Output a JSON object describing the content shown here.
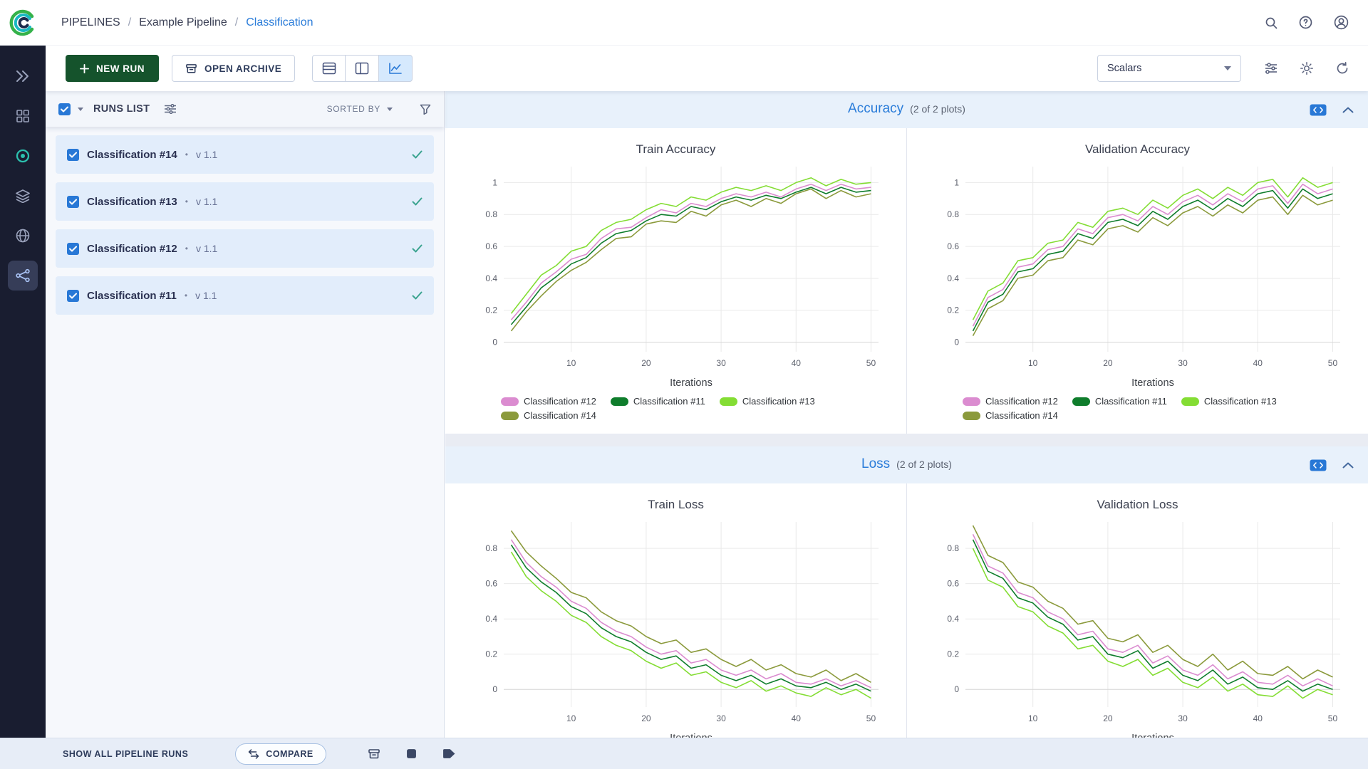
{
  "colors": {
    "accent": "#2878d6",
    "new_run_button": "#15532c",
    "run_selected_row": "#e2edfb",
    "run_check": "#3aa38f",
    "section_header_bg": "#e8f1fb",
    "rail_bg": "#191d30"
  },
  "header": {
    "breadcrumb": [
      "PIPELINES",
      "Example Pipeline",
      "Classification"
    ],
    "separator": "/"
  },
  "toolbar": {
    "new_run": "NEW RUN",
    "open_archive": "OPEN ARCHIVE",
    "metric_view": "Scalars"
  },
  "runs_panel": {
    "title": "RUNS LIST",
    "sorted_by": "SORTED BY",
    "bullet": "•",
    "runs": [
      {
        "name": "Classification #14",
        "version": "v 1.1"
      },
      {
        "name": "Classification #13",
        "version": "v 1.1"
      },
      {
        "name": "Classification #12",
        "version": "v 1.1"
      },
      {
        "name": "Classification #11",
        "version": "v 1.1"
      }
    ]
  },
  "sections": [
    {
      "title": "Accuracy",
      "subtitle": "(2 of 2 plots)"
    },
    {
      "title": "Loss",
      "subtitle": "(2 of 2 plots)"
    }
  ],
  "footer": {
    "show_all": "SHOW ALL PIPELINE RUNS",
    "compare": "COMPARE"
  },
  "chart_data": [
    {
      "type": "line",
      "title": "Train Accuracy",
      "xlabel": "Iterations",
      "xlim": [
        1,
        51
      ],
      "ylim": [
        -0.06,
        1.1
      ],
      "xticks": [
        10,
        20,
        30,
        40,
        50
      ],
      "yticks": [
        0,
        0.2,
        0.4,
        0.6,
        0.8,
        1
      ],
      "x": [
        2,
        4,
        6,
        8,
        10,
        12,
        14,
        16,
        18,
        20,
        22,
        24,
        26,
        28,
        30,
        32,
        34,
        36,
        38,
        40,
        42,
        44,
        46,
        48,
        50
      ],
      "series": [
        {
          "name": "Classification #12",
          "color": "#db8cd0",
          "values": [
            0.14,
            0.25,
            0.37,
            0.44,
            0.52,
            0.55,
            0.65,
            0.71,
            0.72,
            0.78,
            0.83,
            0.81,
            0.87,
            0.85,
            0.9,
            0.93,
            0.91,
            0.94,
            0.91,
            0.96,
            0.99,
            0.95,
            0.99,
            0.96,
            0.97
          ]
        },
        {
          "name": "Classification #11",
          "color": "#0f7d2c",
          "values": [
            0.11,
            0.22,
            0.34,
            0.41,
            0.49,
            0.53,
            0.62,
            0.68,
            0.7,
            0.76,
            0.8,
            0.79,
            0.85,
            0.83,
            0.88,
            0.91,
            0.89,
            0.92,
            0.9,
            0.94,
            0.97,
            0.93,
            0.97,
            0.94,
            0.95
          ]
        },
        {
          "name": "Classification #13",
          "color": "#84dd34",
          "values": [
            0.18,
            0.3,
            0.42,
            0.48,
            0.57,
            0.6,
            0.7,
            0.75,
            0.77,
            0.83,
            0.87,
            0.85,
            0.91,
            0.89,
            0.94,
            0.97,
            0.95,
            0.98,
            0.95,
            1.0,
            1.03,
            0.98,
            1.02,
            0.99,
            1.0
          ]
        },
        {
          "name": "Classification #14",
          "color": "#8b9a3c",
          "values": [
            0.07,
            0.19,
            0.29,
            0.38,
            0.45,
            0.5,
            0.58,
            0.65,
            0.66,
            0.74,
            0.76,
            0.75,
            0.82,
            0.79,
            0.86,
            0.89,
            0.85,
            0.9,
            0.87,
            0.93,
            0.96,
            0.9,
            0.95,
            0.91,
            0.93
          ]
        }
      ]
    },
    {
      "type": "line",
      "title": "Validation Accuracy",
      "xlabel": "Iterations",
      "xlim": [
        1,
        51
      ],
      "ylim": [
        -0.06,
        1.1
      ],
      "xticks": [
        10,
        20,
        30,
        40,
        50
      ],
      "yticks": [
        0,
        0.2,
        0.4,
        0.6,
        0.8,
        1
      ],
      "x": [
        2,
        4,
        6,
        8,
        10,
        12,
        14,
        16,
        18,
        20,
        22,
        24,
        26,
        28,
        30,
        32,
        34,
        36,
        38,
        40,
        42,
        44,
        46,
        48,
        50
      ],
      "series": [
        {
          "name": "Classification #12",
          "color": "#db8cd0",
          "values": [
            0.1,
            0.28,
            0.33,
            0.47,
            0.49,
            0.58,
            0.6,
            0.71,
            0.68,
            0.78,
            0.8,
            0.76,
            0.85,
            0.8,
            0.88,
            0.92,
            0.86,
            0.93,
            0.88,
            0.96,
            0.98,
            0.87,
            0.99,
            0.93,
            0.96
          ]
        },
        {
          "name": "Classification #11",
          "color": "#0f7d2c",
          "values": [
            0.07,
            0.25,
            0.3,
            0.44,
            0.46,
            0.55,
            0.57,
            0.68,
            0.65,
            0.75,
            0.77,
            0.73,
            0.82,
            0.77,
            0.85,
            0.89,
            0.83,
            0.9,
            0.85,
            0.93,
            0.95,
            0.84,
            0.96,
            0.9,
            0.93
          ]
        },
        {
          "name": "Classification #13",
          "color": "#84dd34",
          "values": [
            0.14,
            0.32,
            0.37,
            0.51,
            0.53,
            0.62,
            0.64,
            0.75,
            0.72,
            0.82,
            0.84,
            0.8,
            0.89,
            0.84,
            0.92,
            0.96,
            0.9,
            0.97,
            0.92,
            1.0,
            1.02,
            0.91,
            1.03,
            0.97,
            1.0
          ]
        },
        {
          "name": "Classification #14",
          "color": "#8b9a3c",
          "values": [
            0.04,
            0.21,
            0.26,
            0.4,
            0.42,
            0.51,
            0.53,
            0.64,
            0.61,
            0.71,
            0.73,
            0.69,
            0.78,
            0.73,
            0.81,
            0.85,
            0.79,
            0.86,
            0.81,
            0.89,
            0.91,
            0.8,
            0.92,
            0.86,
            0.89
          ]
        }
      ]
    },
    {
      "type": "line",
      "title": "Train Loss",
      "xlabel": "Iterations",
      "xlim": [
        1,
        51
      ],
      "ylim": [
        -0.1,
        0.95
      ],
      "xticks": [
        10,
        20,
        30,
        40,
        50
      ],
      "yticks": [
        0,
        0.2,
        0.4,
        0.6,
        0.8
      ],
      "x": [
        2,
        4,
        6,
        8,
        10,
        12,
        14,
        16,
        18,
        20,
        22,
        24,
        26,
        28,
        30,
        32,
        34,
        36,
        38,
        40,
        42,
        44,
        46,
        48,
        50
      ],
      "series": [
        {
          "name": "Classification #12",
          "color": "#db8cd0",
          "values": [
            0.85,
            0.72,
            0.64,
            0.58,
            0.5,
            0.46,
            0.38,
            0.33,
            0.3,
            0.24,
            0.2,
            0.22,
            0.15,
            0.17,
            0.11,
            0.08,
            0.11,
            0.06,
            0.09,
            0.04,
            0.03,
            0.06,
            0.02,
            0.05,
            0.01
          ]
        },
        {
          "name": "Classification #11",
          "color": "#0f7d2c",
          "values": [
            0.82,
            0.69,
            0.61,
            0.55,
            0.47,
            0.43,
            0.35,
            0.3,
            0.27,
            0.21,
            0.17,
            0.19,
            0.12,
            0.14,
            0.08,
            0.05,
            0.08,
            0.03,
            0.06,
            0.02,
            0.01,
            0.04,
            0.0,
            0.03,
            -0.01
          ]
        },
        {
          "name": "Classification #13",
          "color": "#84dd34",
          "values": [
            0.78,
            0.64,
            0.56,
            0.5,
            0.42,
            0.38,
            0.3,
            0.25,
            0.22,
            0.16,
            0.12,
            0.15,
            0.08,
            0.1,
            0.04,
            0.01,
            0.05,
            -0.01,
            0.02,
            -0.02,
            -0.04,
            0.01,
            -0.03,
            0.0,
            -0.05
          ]
        },
        {
          "name": "Classification #14",
          "color": "#8b9a3c",
          "values": [
            0.9,
            0.78,
            0.7,
            0.63,
            0.55,
            0.52,
            0.44,
            0.39,
            0.36,
            0.3,
            0.26,
            0.28,
            0.21,
            0.23,
            0.17,
            0.13,
            0.17,
            0.11,
            0.14,
            0.09,
            0.07,
            0.11,
            0.05,
            0.09,
            0.04
          ]
        }
      ]
    },
    {
      "type": "line",
      "title": "Validation Loss",
      "xlabel": "Iterations",
      "xlim": [
        1,
        51
      ],
      "ylim": [
        -0.1,
        0.95
      ],
      "xticks": [
        10,
        20,
        30,
        40,
        50
      ],
      "yticks": [
        0,
        0.2,
        0.4,
        0.6,
        0.8
      ],
      "x": [
        2,
        4,
        6,
        8,
        10,
        12,
        14,
        16,
        18,
        20,
        22,
        24,
        26,
        28,
        30,
        32,
        34,
        36,
        38,
        40,
        42,
        44,
        46,
        48,
        50
      ],
      "series": [
        {
          "name": "Classification #12",
          "color": "#db8cd0",
          "values": [
            0.88,
            0.7,
            0.66,
            0.55,
            0.52,
            0.44,
            0.4,
            0.31,
            0.33,
            0.23,
            0.21,
            0.25,
            0.15,
            0.19,
            0.11,
            0.08,
            0.14,
            0.06,
            0.1,
            0.04,
            0.03,
            0.08,
            0.02,
            0.06,
            0.02
          ]
        },
        {
          "name": "Classification #11",
          "color": "#0f7d2c",
          "values": [
            0.85,
            0.67,
            0.63,
            0.52,
            0.49,
            0.41,
            0.37,
            0.28,
            0.3,
            0.2,
            0.18,
            0.22,
            0.12,
            0.16,
            0.08,
            0.05,
            0.11,
            0.03,
            0.07,
            0.01,
            0.0,
            0.05,
            -0.01,
            0.03,
            0.0
          ]
        },
        {
          "name": "Classification #13",
          "color": "#84dd34",
          "values": [
            0.8,
            0.62,
            0.58,
            0.47,
            0.44,
            0.36,
            0.32,
            0.23,
            0.25,
            0.16,
            0.13,
            0.17,
            0.08,
            0.12,
            0.04,
            0.01,
            0.07,
            -0.01,
            0.03,
            -0.03,
            -0.04,
            0.02,
            -0.05,
            0.0,
            -0.03
          ]
        },
        {
          "name": "Classification #14",
          "color": "#8b9a3c",
          "values": [
            0.93,
            0.76,
            0.72,
            0.61,
            0.58,
            0.5,
            0.46,
            0.37,
            0.39,
            0.29,
            0.27,
            0.31,
            0.21,
            0.25,
            0.17,
            0.13,
            0.2,
            0.11,
            0.16,
            0.09,
            0.08,
            0.13,
            0.06,
            0.11,
            0.07
          ]
        }
      ]
    }
  ]
}
